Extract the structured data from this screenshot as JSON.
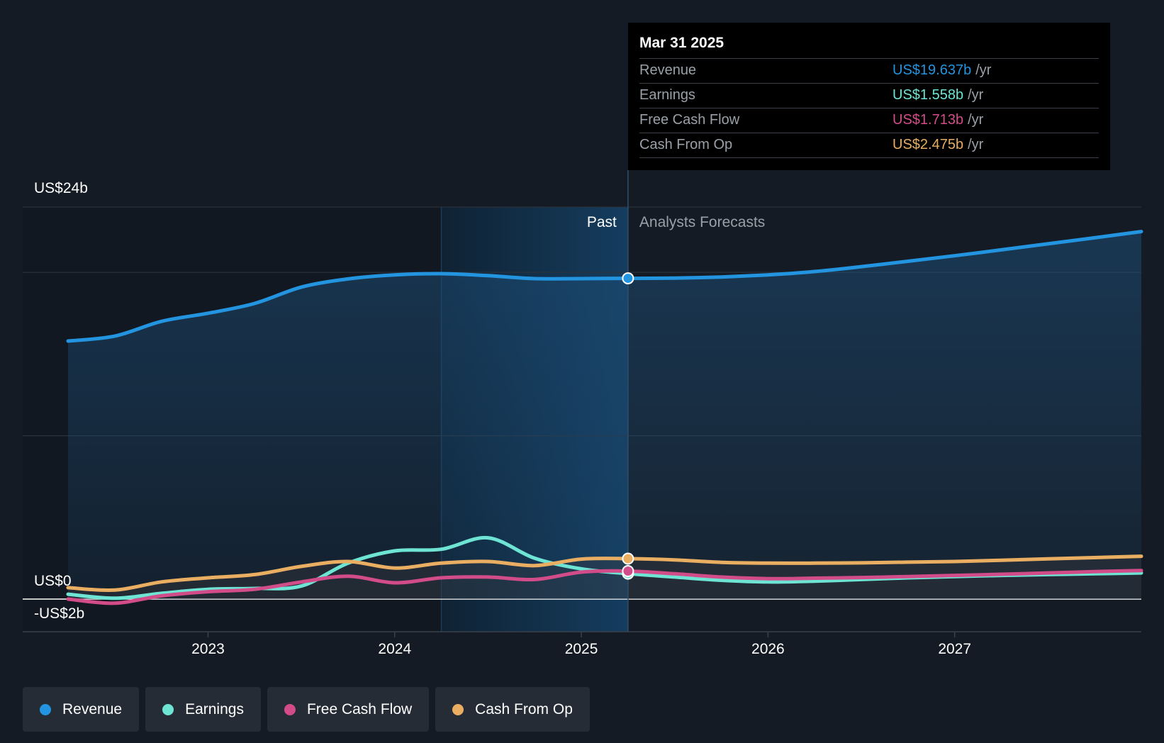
{
  "chart_data": {
    "type": "line",
    "y_axis_labels": [
      "US$24b",
      "US$0",
      "-US$2b"
    ],
    "ylim": [
      -2,
      24
    ],
    "xlim": [
      2022.25,
      2028.0
    ],
    "x_ticks": [
      {
        "value": 2023,
        "label": "2023"
      },
      {
        "value": 2024,
        "label": "2024"
      },
      {
        "value": 2025,
        "label": "2025"
      },
      {
        "value": 2026,
        "label": "2026"
      },
      {
        "value": 2027,
        "label": "2027"
      }
    ],
    "gridlines": [
      24,
      20,
      10,
      0
    ],
    "past_label": "Past",
    "forecast_label": "Analysts Forecasts",
    "highlight_range": [
      2024.25,
      2025.25
    ],
    "divider_x": 2025.25,
    "series": [
      {
        "name": "Revenue",
        "color": "#2394df",
        "points": [
          [
            2022.25,
            15.8
          ],
          [
            2022.5,
            16.1
          ],
          [
            2022.75,
            17.0
          ],
          [
            2023.0,
            17.5
          ],
          [
            2023.25,
            18.1
          ],
          [
            2023.5,
            19.1
          ],
          [
            2023.75,
            19.6
          ],
          [
            2024.0,
            19.85
          ],
          [
            2024.25,
            19.92
          ],
          [
            2024.5,
            19.8
          ],
          [
            2024.75,
            19.62
          ],
          [
            2025.0,
            19.62
          ],
          [
            2025.25,
            19.637
          ],
          [
            2025.5,
            19.65
          ],
          [
            2025.75,
            19.72
          ],
          [
            2026.0,
            19.85
          ],
          [
            2026.25,
            20.05
          ],
          [
            2026.5,
            20.35
          ],
          [
            2026.75,
            20.68
          ],
          [
            2027.0,
            21.02
          ],
          [
            2027.25,
            21.38
          ],
          [
            2027.5,
            21.75
          ],
          [
            2027.75,
            22.12
          ],
          [
            2028.0,
            22.5
          ]
        ]
      },
      {
        "name": "Earnings",
        "color": "#6ee5d4",
        "points": [
          [
            2022.25,
            0.3
          ],
          [
            2022.5,
            0.05
          ],
          [
            2022.75,
            0.35
          ],
          [
            2023.0,
            0.6
          ],
          [
            2023.25,
            0.65
          ],
          [
            2023.5,
            0.8
          ],
          [
            2023.75,
            2.2
          ],
          [
            2024.0,
            2.95
          ],
          [
            2024.25,
            3.05
          ],
          [
            2024.5,
            3.75
          ],
          [
            2024.75,
            2.5
          ],
          [
            2025.0,
            1.85
          ],
          [
            2025.25,
            1.558
          ],
          [
            2025.5,
            1.35
          ],
          [
            2025.75,
            1.15
          ],
          [
            2026.0,
            1.05
          ],
          [
            2026.25,
            1.1
          ],
          [
            2026.5,
            1.2
          ],
          [
            2026.75,
            1.3
          ],
          [
            2027.0,
            1.38
          ],
          [
            2027.25,
            1.45
          ],
          [
            2027.5,
            1.5
          ],
          [
            2027.75,
            1.55
          ],
          [
            2028.0,
            1.6
          ]
        ]
      },
      {
        "name": "Free Cash Flow",
        "color": "#d24c8a",
        "points": [
          [
            2022.25,
            0.0
          ],
          [
            2022.5,
            -0.25
          ],
          [
            2022.75,
            0.2
          ],
          [
            2023.0,
            0.45
          ],
          [
            2023.25,
            0.6
          ],
          [
            2023.5,
            1.05
          ],
          [
            2023.75,
            1.4
          ],
          [
            2024.0,
            1.0
          ],
          [
            2024.25,
            1.3
          ],
          [
            2024.5,
            1.35
          ],
          [
            2024.75,
            1.2
          ],
          [
            2025.0,
            1.65
          ],
          [
            2025.25,
            1.713
          ],
          [
            2025.5,
            1.55
          ],
          [
            2025.75,
            1.35
          ],
          [
            2026.0,
            1.25
          ],
          [
            2026.25,
            1.28
          ],
          [
            2026.5,
            1.32
          ],
          [
            2026.75,
            1.38
          ],
          [
            2027.0,
            1.45
          ],
          [
            2027.25,
            1.52
          ],
          [
            2027.5,
            1.6
          ],
          [
            2027.75,
            1.68
          ],
          [
            2028.0,
            1.75
          ]
        ]
      },
      {
        "name": "Cash From Op",
        "color": "#e9ae62",
        "points": [
          [
            2022.25,
            0.7
          ],
          [
            2022.5,
            0.55
          ],
          [
            2022.75,
            1.05
          ],
          [
            2023.0,
            1.3
          ],
          [
            2023.25,
            1.5
          ],
          [
            2023.5,
            2.0
          ],
          [
            2023.75,
            2.3
          ],
          [
            2024.0,
            1.9
          ],
          [
            2024.25,
            2.2
          ],
          [
            2024.5,
            2.3
          ],
          [
            2024.75,
            2.05
          ],
          [
            2025.0,
            2.45
          ],
          [
            2025.25,
            2.475
          ],
          [
            2025.5,
            2.4
          ],
          [
            2025.75,
            2.25
          ],
          [
            2026.0,
            2.2
          ],
          [
            2026.25,
            2.2
          ],
          [
            2026.5,
            2.22
          ],
          [
            2026.75,
            2.26
          ],
          [
            2027.0,
            2.3
          ],
          [
            2027.25,
            2.38
          ],
          [
            2027.5,
            2.46
          ],
          [
            2027.75,
            2.54
          ],
          [
            2028.0,
            2.62
          ]
        ]
      }
    ]
  },
  "tooltip": {
    "date": "Mar 31 2025",
    "rows": [
      {
        "label": "Revenue",
        "value": "US$19.637b",
        "unit": "/yr",
        "color": "#2394df"
      },
      {
        "label": "Earnings",
        "value": "US$1.558b",
        "unit": "/yr",
        "color": "#6ee5d4"
      },
      {
        "label": "Free Cash Flow",
        "value": "US$1.713b",
        "unit": "/yr",
        "color": "#d24c8a"
      },
      {
        "label": "Cash From Op",
        "value": "US$2.475b",
        "unit": "/yr",
        "color": "#e9ae62"
      }
    ]
  },
  "legend": [
    {
      "label": "Revenue",
      "color": "#2394df"
    },
    {
      "label": "Earnings",
      "color": "#6ee5d4"
    },
    {
      "label": "Free Cash Flow",
      "color": "#d24c8a"
    },
    {
      "label": "Cash From Op",
      "color": "#e9ae62"
    }
  ]
}
